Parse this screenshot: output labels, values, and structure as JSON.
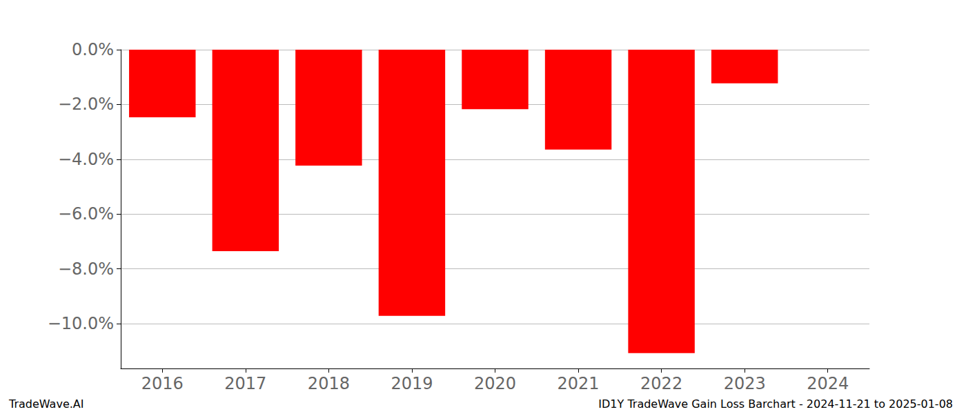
{
  "chart_data": {
    "type": "bar",
    "title": "ID1Y TradeWave Gain Loss Barchart - 2024-11-21 to 2025-01-08",
    "annotations": [
      "TradeWave.AI"
    ],
    "categories": [
      "2016",
      "2017",
      "2018",
      "2019",
      "2020",
      "2021",
      "2022",
      "2023",
      "2024"
    ],
    "values": [
      -2.47,
      -7.36,
      -4.23,
      -9.72,
      -2.17,
      -3.65,
      -11.08,
      -1.23,
      null
    ],
    "color": "#ff0000",
    "ylim": [
      -11.64,
      0
    ],
    "yticks": [
      {
        "value": -10,
        "label": "−10.0%"
      },
      {
        "value": -8,
        "label": "−8.0%"
      },
      {
        "value": -6,
        "label": "−6.0%"
      },
      {
        "value": -4,
        "label": "−4.0%"
      },
      {
        "value": -2,
        "label": "−2.0%"
      },
      {
        "value": 0,
        "label": "0.0%"
      }
    ],
    "grid": true
  }
}
